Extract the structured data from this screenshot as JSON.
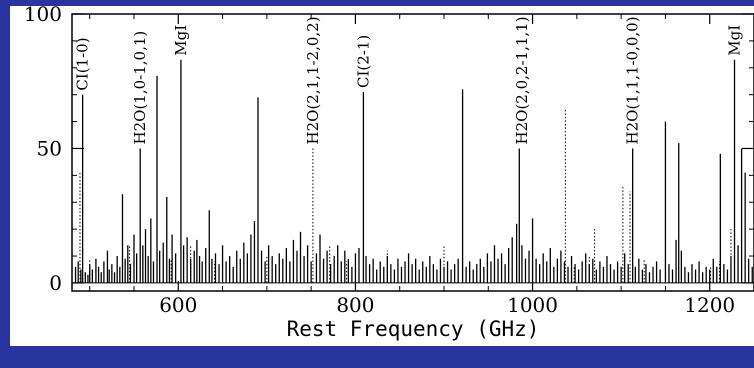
{
  "chart_data": {
    "type": "line",
    "title": "",
    "xlabel": "Rest Frequency (GHz)",
    "ylabel": "",
    "xlim": [
      480,
      1250
    ],
    "ylim": [
      -3,
      100
    ],
    "x_ticks": [
      600,
      800,
      1000,
      1200
    ],
    "x_tick_labels": [
      "600",
      "800",
      "1000",
      "1200"
    ],
    "y_ticks": [
      0,
      50,
      100
    ],
    "y_tick_labels": [
      "0",
      "50",
      "100"
    ],
    "grid": false,
    "annotations": [
      {
        "text": "CI(1-0)",
        "x": 492,
        "y": 70
      },
      {
        "text": "H2O(1,0-1,0,1)",
        "x": 557,
        "y": 50
      },
      {
        "text": "MgI",
        "x": 603,
        "y": 83
      },
      {
        "text": "H2O(2,1,1-2,0,2)",
        "x": 752,
        "y": 50
      },
      {
        "text": "CI(2-1)",
        "x": 809,
        "y": 71
      },
      {
        "text": "H2O(2,0,2-1,1,1)",
        "x": 988,
        "y": 50
      },
      {
        "text": "H2O(1,1,1-0,0,0)",
        "x": 1113,
        "y": 50
      },
      {
        "text": "MgI",
        "x": 1228,
        "y": 83
      }
    ],
    "series": [
      {
        "style": "solid",
        "points": [
          [
            484,
            6
          ],
          [
            487,
            8
          ],
          [
            490,
            5
          ],
          [
            492,
            70
          ],
          [
            495,
            4
          ],
          [
            498,
            3
          ],
          [
            500,
            7
          ],
          [
            503,
            5
          ],
          [
            507,
            9
          ],
          [
            510,
            6
          ],
          [
            513,
            4
          ],
          [
            516,
            8
          ],
          [
            520,
            12
          ],
          [
            522,
            5
          ],
          [
            525,
            7
          ],
          [
            528,
            4
          ],
          [
            531,
            10
          ],
          [
            534,
            6
          ],
          [
            537,
            33
          ],
          [
            540,
            9
          ],
          [
            543,
            14
          ],
          [
            546,
            7
          ],
          [
            550,
            18
          ],
          [
            553,
            11
          ],
          [
            557,
            50
          ],
          [
            560,
            14
          ],
          [
            563,
            20
          ],
          [
            566,
            10
          ],
          [
            569,
            24
          ],
          [
            572,
            8
          ],
          [
            576,
            77
          ],
          [
            579,
            12
          ],
          [
            583,
            15
          ],
          [
            587,
            32
          ],
          [
            590,
            9
          ],
          [
            593,
            18
          ],
          [
            597,
            11
          ],
          [
            603,
            83
          ],
          [
            606,
            14
          ],
          [
            610,
            17
          ],
          [
            614,
            9
          ],
          [
            618,
            12
          ],
          [
            621,
            16
          ],
          [
            624,
            10
          ],
          [
            627,
            8
          ],
          [
            631,
            13
          ],
          [
            635,
            27
          ],
          [
            638,
            9
          ],
          [
            642,
            11
          ],
          [
            646,
            7
          ],
          [
            650,
            14
          ],
          [
            654,
            8
          ],
          [
            658,
            10
          ],
          [
            662,
            6
          ],
          [
            666,
            12
          ],
          [
            670,
            9
          ],
          [
            674,
            15
          ],
          [
            678,
            11
          ],
          [
            682,
            18
          ],
          [
            686,
            23
          ],
          [
            690,
            69
          ],
          [
            694,
            12
          ],
          [
            698,
            8
          ],
          [
            702,
            14
          ],
          [
            706,
            10
          ],
          [
            710,
            7
          ],
          [
            714,
            11
          ],
          [
            718,
            9
          ],
          [
            722,
            13
          ],
          [
            726,
            8
          ],
          [
            730,
            16
          ],
          [
            734,
            12
          ],
          [
            738,
            19
          ],
          [
            742,
            10
          ],
          [
            746,
            14
          ],
          [
            750,
            8
          ],
          [
            756,
            11
          ],
          [
            760,
            18
          ],
          [
            764,
            9
          ],
          [
            768,
            12
          ],
          [
            772,
            7
          ],
          [
            776,
            10
          ],
          [
            780,
            14
          ],
          [
            784,
            8
          ],
          [
            788,
            12
          ],
          [
            792,
            9
          ],
          [
            796,
            6
          ],
          [
            800,
            11
          ],
          [
            804,
            13
          ],
          [
            809,
            71
          ],
          [
            812,
            10
          ],
          [
            816,
            7
          ],
          [
            820,
            9
          ],
          [
            824,
            5
          ],
          [
            828,
            8
          ],
          [
            832,
            6
          ],
          [
            836,
            10
          ],
          [
            840,
            7
          ],
          [
            844,
            5
          ],
          [
            848,
            9
          ],
          [
            852,
            6
          ],
          [
            856,
            8
          ],
          [
            860,
            11
          ],
          [
            864,
            7
          ],
          [
            868,
            9
          ],
          [
            872,
            5
          ],
          [
            876,
            8
          ],
          [
            880,
            6
          ],
          [
            884,
            10
          ],
          [
            888,
            7
          ],
          [
            892,
            5
          ],
          [
            896,
            9
          ],
          [
            900,
            6
          ],
          [
            904,
            8
          ],
          [
            908,
            5
          ],
          [
            912,
            7
          ],
          [
            916,
            9
          ],
          [
            921,
            72
          ],
          [
            925,
            6
          ],
          [
            929,
            8
          ],
          [
            933,
            5
          ],
          [
            937,
            7
          ],
          [
            941,
            9
          ],
          [
            945,
            6
          ],
          [
            949,
            11
          ],
          [
            953,
            8
          ],
          [
            957,
            14
          ],
          [
            961,
            9
          ],
          [
            965,
            11
          ],
          [
            969,
            7
          ],
          [
            973,
            13
          ],
          [
            977,
            17
          ],
          [
            982,
            22
          ],
          [
            985,
            50
          ],
          [
            988,
            14
          ],
          [
            992,
            9
          ],
          [
            996,
            12
          ],
          [
            1000,
            24
          ],
          [
            1004,
            9
          ],
          [
            1008,
            7
          ],
          [
            1012,
            11
          ],
          [
            1016,
            8
          ],
          [
            1020,
            13
          ],
          [
            1024,
            6
          ],
          [
            1028,
            9
          ],
          [
            1032,
            12
          ],
          [
            1036,
            8
          ],
          [
            1040,
            6
          ],
          [
            1044,
            10
          ],
          [
            1048,
            7
          ],
          [
            1052,
            5
          ],
          [
            1056,
            8
          ],
          [
            1060,
            11
          ],
          [
            1064,
            7
          ],
          [
            1068,
            9
          ],
          [
            1072,
            5
          ],
          [
            1076,
            8
          ],
          [
            1080,
            6
          ],
          [
            1084,
            10
          ],
          [
            1088,
            7
          ],
          [
            1092,
            5
          ],
          [
            1096,
            8
          ],
          [
            1100,
            6
          ],
          [
            1104,
            11
          ],
          [
            1108,
            7
          ],
          [
            1113,
            50
          ],
          [
            1116,
            6
          ],
          [
            1120,
            9
          ],
          [
            1124,
            5
          ],
          [
            1128,
            7
          ],
          [
            1132,
            4
          ],
          [
            1136,
            6
          ],
          [
            1140,
            8
          ],
          [
            1144,
            5
          ],
          [
            1150,
            60
          ],
          [
            1154,
            7
          ],
          [
            1158,
            5
          ],
          [
            1162,
            16
          ],
          [
            1165,
            52
          ],
          [
            1168,
            12
          ],
          [
            1172,
            6
          ],
          [
            1176,
            4
          ],
          [
            1180,
            7
          ],
          [
            1184,
            5
          ],
          [
            1188,
            8
          ],
          [
            1192,
            4
          ],
          [
            1196,
            6
          ],
          [
            1200,
            5
          ],
          [
            1204,
            9
          ],
          [
            1208,
            6
          ],
          [
            1212,
            48
          ],
          [
            1216,
            7
          ],
          [
            1220,
            5
          ],
          [
            1224,
            10
          ],
          [
            1228,
            83
          ],
          [
            1232,
            14
          ],
          [
            1236,
            50
          ],
          [
            1240,
            41
          ],
          [
            1244,
            9
          ],
          [
            1248,
            6
          ]
        ]
      },
      {
        "style": "dotted",
        "points": [
          [
            489,
            41
          ],
          [
            500,
            9
          ],
          [
            520,
            6
          ],
          [
            545,
            14
          ],
          [
            560,
            12
          ],
          [
            592,
            9
          ],
          [
            614,
            14
          ],
          [
            641,
            8
          ],
          [
            700,
            10
          ],
          [
            752,
            50
          ],
          [
            771,
            14
          ],
          [
            790,
            8
          ],
          [
            836,
            12
          ],
          [
            900,
            14
          ],
          [
            957,
            10
          ],
          [
            1000,
            14
          ],
          [
            1037,
            65
          ],
          [
            1047,
            6
          ],
          [
            1064,
            10
          ],
          [
            1070,
            20
          ],
          [
            1102,
            36
          ],
          [
            1110,
            34
          ],
          [
            1126,
            9
          ],
          [
            1201,
            6
          ],
          [
            1211,
            8
          ],
          [
            1224,
            20
          ],
          [
            1236,
            9
          ]
        ]
      }
    ]
  }
}
